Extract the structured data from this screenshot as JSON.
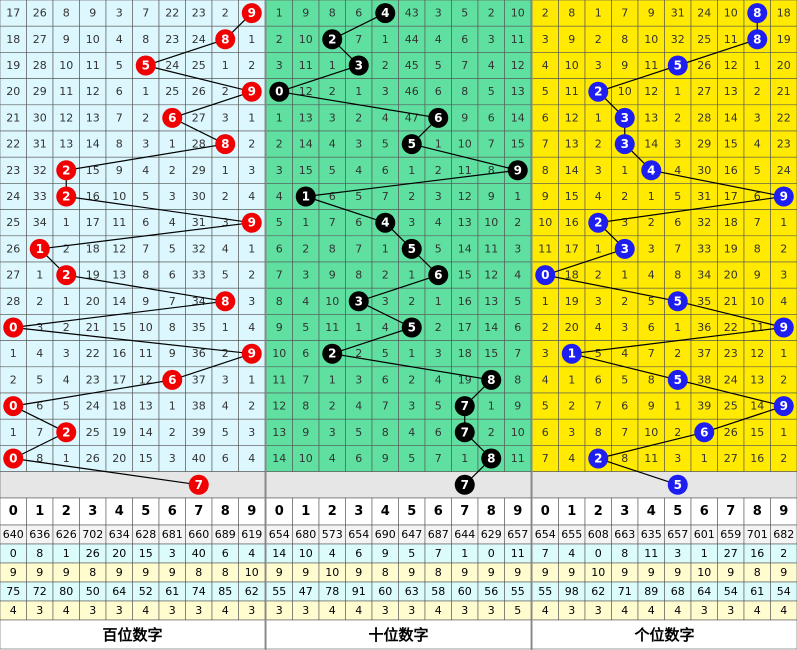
{
  "digits": [
    0,
    1,
    2,
    3,
    4,
    5,
    6,
    7,
    8,
    9
  ],
  "panels": [
    {
      "title": "百位数字",
      "hits": [
        9,
        8,
        5,
        9,
        6,
        8,
        2,
        2,
        9,
        1,
        2,
        8,
        0,
        9,
        6,
        0,
        2,
        0
      ],
      "prediction": 7,
      "rows": [
        [
          17,
          26,
          8,
          9,
          3,
          7,
          22,
          23,
          2,
          null
        ],
        [
          18,
          27,
          9,
          10,
          4,
          8,
          23,
          24,
          null,
          1
        ],
        [
          19,
          28,
          10,
          11,
          5,
          null,
          24,
          25,
          1,
          2
        ],
        [
          20,
          29,
          11,
          12,
          6,
          1,
          25,
          26,
          2,
          null
        ],
        [
          21,
          30,
          12,
          13,
          7,
          2,
          null,
          27,
          3,
          1
        ],
        [
          22,
          31,
          13,
          14,
          8,
          3,
          1,
          28,
          null,
          2
        ],
        [
          23,
          32,
          null,
          15,
          9,
          4,
          2,
          29,
          1,
          3
        ],
        [
          24,
          33,
          null,
          16,
          10,
          5,
          3,
          30,
          2,
          4
        ],
        [
          25,
          34,
          1,
          17,
          11,
          6,
          4,
          31,
          3,
          null
        ],
        [
          26,
          null,
          2,
          18,
          12,
          7,
          5,
          32,
          4,
          1
        ],
        [
          27,
          1,
          null,
          19,
          13,
          8,
          6,
          33,
          5,
          2
        ],
        [
          28,
          2,
          1,
          20,
          14,
          9,
          7,
          34,
          null,
          3
        ],
        [
          null,
          3,
          2,
          21,
          15,
          10,
          8,
          35,
          1,
          4
        ],
        [
          1,
          4,
          3,
          22,
          16,
          11,
          9,
          36,
          2,
          null
        ],
        [
          2,
          5,
          4,
          23,
          17,
          12,
          null,
          37,
          3,
          1
        ],
        [
          null,
          6,
          5,
          24,
          18,
          13,
          1,
          38,
          4,
          2
        ],
        [
          1,
          7,
          null,
          25,
          19,
          14,
          2,
          39,
          5,
          3
        ],
        [
          null,
          8,
          1,
          26,
          20,
          15,
          3,
          40,
          6,
          4
        ]
      ],
      "stats": [
        [
          640,
          636,
          626,
          702,
          634,
          628,
          681,
          660,
          689,
          619
        ],
        [
          0,
          8,
          1,
          26,
          20,
          15,
          3,
          40,
          6,
          4
        ],
        [
          9,
          9,
          9,
          8,
          9,
          9,
          9,
          8,
          8,
          10
        ],
        [
          75,
          72,
          80,
          50,
          64,
          52,
          61,
          74,
          85,
          62
        ],
        [
          4,
          3,
          4,
          3,
          3,
          4,
          3,
          3,
          4,
          3
        ]
      ]
    },
    {
      "title": "十位数字",
      "hits": [
        4,
        2,
        3,
        0,
        6,
        5,
        9,
        1,
        4,
        5,
        6,
        3,
        5,
        2,
        8,
        7,
        7,
        8
      ],
      "prediction": 7,
      "rows": [
        [
          1,
          9,
          8,
          6,
          null,
          43,
          3,
          5,
          2,
          10
        ],
        [
          2,
          10,
          null,
          7,
          1,
          44,
          4,
          6,
          3,
          11
        ],
        [
          3,
          11,
          1,
          null,
          2,
          45,
          5,
          7,
          4,
          12
        ],
        [
          null,
          12,
          2,
          1,
          3,
          46,
          6,
          8,
          5,
          13
        ],
        [
          1,
          13,
          3,
          2,
          4,
          47,
          null,
          9,
          6,
          14
        ],
        [
          2,
          14,
          4,
          3,
          5,
          null,
          1,
          10,
          7,
          15
        ],
        [
          3,
          15,
          5,
          4,
          6,
          1,
          2,
          11,
          8,
          null
        ],
        [
          4,
          null,
          6,
          5,
          7,
          2,
          3,
          12,
          9,
          1
        ],
        [
          5,
          1,
          7,
          6,
          null,
          3,
          4,
          13,
          10,
          2
        ],
        [
          6,
          2,
          8,
          7,
          1,
          null,
          5,
          14,
          11,
          3
        ],
        [
          7,
          3,
          9,
          8,
          2,
          1,
          null,
          15,
          12,
          4
        ],
        [
          8,
          4,
          10,
          null,
          3,
          2,
          1,
          16,
          13,
          5
        ],
        [
          9,
          5,
          11,
          1,
          4,
          null,
          2,
          17,
          14,
          6
        ],
        [
          10,
          6,
          null,
          2,
          5,
          1,
          3,
          18,
          15,
          7
        ],
        [
          11,
          7,
          1,
          3,
          6,
          2,
          4,
          19,
          null,
          8
        ],
        [
          12,
          8,
          2,
          4,
          7,
          3,
          5,
          null,
          1,
          9
        ],
        [
          13,
          9,
          3,
          5,
          8,
          4,
          6,
          null,
          2,
          10
        ],
        [
          14,
          10,
          4,
          6,
          9,
          5,
          7,
          1,
          null,
          11
        ]
      ],
      "stats": [
        [
          654,
          680,
          573,
          654,
          690,
          647,
          687,
          644,
          629,
          657
        ],
        [
          14,
          10,
          4,
          6,
          9,
          5,
          7,
          1,
          0,
          11
        ],
        [
          9,
          9,
          10,
          9,
          8,
          9,
          8,
          9,
          9,
          9
        ],
        [
          55,
          47,
          78,
          91,
          60,
          63,
          58,
          60,
          56,
          55
        ],
        [
          3,
          3,
          4,
          4,
          3,
          3,
          4,
          3,
          3,
          5
        ]
      ]
    },
    {
      "title": "个位数字",
      "hits": [
        8,
        8,
        5,
        2,
        3,
        3,
        4,
        9,
        2,
        3,
        0,
        5,
        9,
        1,
        5,
        9,
        6,
        2
      ],
      "prediction": 5,
      "rows": [
        [
          2,
          8,
          1,
          7,
          9,
          31,
          24,
          10,
          null,
          18
        ],
        [
          3,
          9,
          2,
          8,
          10,
          32,
          25,
          11,
          null,
          19
        ],
        [
          4,
          10,
          3,
          9,
          11,
          null,
          26,
          12,
          1,
          20
        ],
        [
          5,
          11,
          null,
          10,
          12,
          1,
          27,
          13,
          2,
          21
        ],
        [
          6,
          12,
          1,
          null,
          13,
          2,
          28,
          14,
          3,
          22
        ],
        [
          7,
          13,
          2,
          null,
          14,
          3,
          29,
          15,
          4,
          23
        ],
        [
          8,
          14,
          3,
          1,
          null,
          4,
          30,
          16,
          5,
          24
        ],
        [
          9,
          15,
          4,
          2,
          1,
          5,
          31,
          17,
          6,
          null
        ],
        [
          10,
          16,
          null,
          3,
          2,
          6,
          32,
          18,
          7,
          1
        ],
        [
          11,
          17,
          1,
          null,
          3,
          7,
          33,
          19,
          8,
          2
        ],
        [
          null,
          18,
          2,
          1,
          4,
          8,
          34,
          20,
          9,
          3
        ],
        [
          1,
          19,
          3,
          2,
          5,
          null,
          35,
          21,
          10,
          4
        ],
        [
          2,
          20,
          4,
          3,
          6,
          1,
          36,
          22,
          11,
          null
        ],
        [
          3,
          null,
          5,
          4,
          7,
          2,
          37,
          23,
          12,
          1
        ],
        [
          4,
          1,
          6,
          5,
          8,
          null,
          38,
          24,
          13,
          2
        ],
        [
          5,
          2,
          7,
          6,
          9,
          1,
          39,
          25,
          14,
          null
        ],
        [
          6,
          3,
          8,
          7,
          10,
          2,
          null,
          26,
          15,
          1
        ],
        [
          7,
          4,
          null,
          8,
          11,
          3,
          1,
          27,
          16,
          2
        ]
      ],
      "stats": [
        [
          654,
          655,
          608,
          663,
          635,
          657,
          601,
          659,
          701,
          682
        ],
        [
          7,
          4,
          0,
          8,
          11,
          3,
          1,
          27,
          16,
          2
        ],
        [
          9,
          9,
          10,
          9,
          9,
          9,
          10,
          9,
          8,
          9
        ],
        [
          55,
          98,
          62,
          71,
          89,
          68,
          64,
          54,
          61,
          54
        ],
        [
          4,
          3,
          3,
          4,
          4,
          4,
          3,
          3,
          4,
          4
        ]
      ]
    }
  ]
}
